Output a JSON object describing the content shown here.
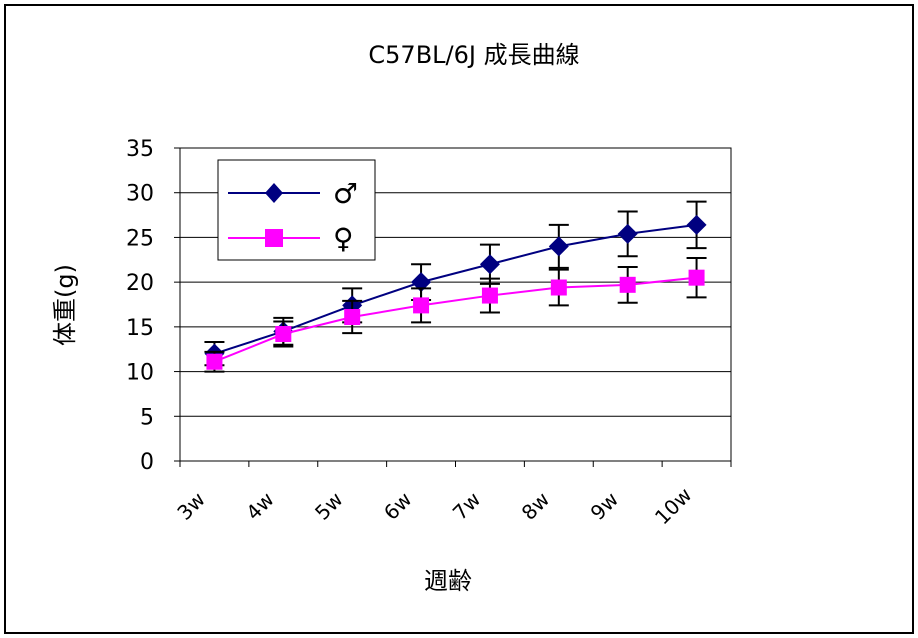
{
  "chart_data": {
    "type": "line",
    "title": "C57BL/6J  成長曲線",
    "xlabel": "週齢",
    "ylabel": "体重(g)",
    "categories": [
      "3w",
      "4w",
      "5w",
      "6w",
      "7w",
      "8w",
      "9w",
      "10w"
    ],
    "ylim": [
      0,
      35
    ],
    "yticks": [
      0,
      5,
      10,
      15,
      20,
      25,
      30,
      35
    ],
    "grid": true,
    "legend_position": "top-left",
    "series": [
      {
        "name": "♂",
        "color": "#000080",
        "marker": "diamond",
        "values": [
          12.0,
          14.5,
          17.4,
          20.0,
          22.0,
          24.0,
          25.4,
          26.4
        ],
        "error": [
          1.3,
          1.5,
          1.9,
          2.0,
          2.2,
          2.4,
          2.5,
          2.6
        ]
      },
      {
        "name": "♀",
        "color": "#ff00ff",
        "marker": "square",
        "values": [
          11.1,
          14.2,
          16.1,
          17.4,
          18.5,
          19.4,
          19.7,
          20.5
        ],
        "error": [
          1.1,
          1.4,
          1.8,
          1.9,
          1.9,
          2.0,
          2.0,
          2.2
        ]
      }
    ]
  }
}
